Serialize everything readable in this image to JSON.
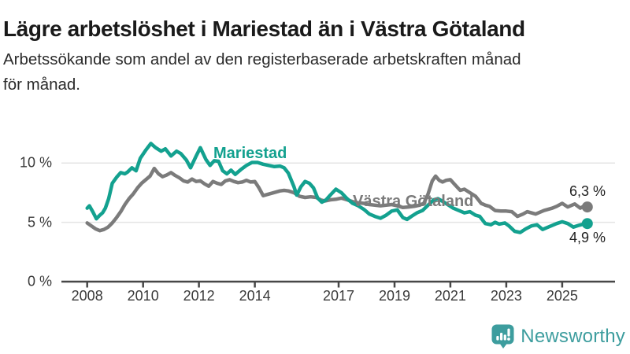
{
  "header": {
    "title": "Lägre arbetslöshet i Mariestad än i Västra Götaland",
    "subtitle_line1": "Arbetssökande som andel av den registerbaserade arbetskraften månad",
    "subtitle_line2": "för månad."
  },
  "chart_data": {
    "type": "line",
    "title": "",
    "xlabel": "",
    "ylabel": "",
    "x_axis": {
      "ticks": [
        2008,
        2010,
        2012,
        2014,
        2017,
        2019,
        2021,
        2023,
        2025
      ],
      "range": [
        2007.1,
        2026.9
      ]
    },
    "y_axis": {
      "ticks": [
        {
          "value": 0,
          "label": "0 %"
        },
        {
          "value": 5,
          "label": "5 %"
        },
        {
          "value": 10,
          "label": "10 %"
        }
      ],
      "gridlines": [
        5,
        10
      ],
      "range": [
        0,
        12.8
      ]
    },
    "grid": "horizontal-only",
    "legend_position": "inline-labels",
    "series": [
      {
        "name": "Mariestad",
        "color": "#13a18f",
        "end_label": "4,9 %",
        "end_value": 4.9,
        "points": [
          [
            2008.0,
            6.2
          ],
          [
            2008.08,
            6.4
          ],
          [
            2008.2,
            5.9
          ],
          [
            2008.33,
            5.3
          ],
          [
            2008.45,
            5.6
          ],
          [
            2008.55,
            5.8
          ],
          [
            2008.65,
            6.2
          ],
          [
            2008.77,
            7.0
          ],
          [
            2008.9,
            8.3
          ],
          [
            2009.05,
            8.8
          ],
          [
            2009.2,
            9.2
          ],
          [
            2009.35,
            9.1
          ],
          [
            2009.45,
            9.25
          ],
          [
            2009.6,
            9.6
          ],
          [
            2009.75,
            9.35
          ],
          [
            2009.9,
            10.4
          ],
          [
            2010.1,
            11.1
          ],
          [
            2010.28,
            11.65
          ],
          [
            2010.45,
            11.3
          ],
          [
            2010.65,
            11.0
          ],
          [
            2010.8,
            11.2
          ],
          [
            2011.0,
            10.6
          ],
          [
            2011.2,
            11.0
          ],
          [
            2011.35,
            10.8
          ],
          [
            2011.55,
            10.25
          ],
          [
            2011.7,
            9.6
          ],
          [
            2011.9,
            10.6
          ],
          [
            2012.05,
            11.3
          ],
          [
            2012.25,
            10.3
          ],
          [
            2012.4,
            9.8
          ],
          [
            2012.55,
            10.2
          ],
          [
            2012.7,
            10.15
          ],
          [
            2012.85,
            9.35
          ],
          [
            2013.0,
            9.1
          ],
          [
            2013.15,
            9.4
          ],
          [
            2013.3,
            9.05
          ],
          [
            2013.5,
            9.45
          ],
          [
            2013.7,
            9.8
          ],
          [
            2013.9,
            10.05
          ],
          [
            2014.1,
            10.05
          ],
          [
            2014.3,
            9.9
          ],
          [
            2014.5,
            9.8
          ],
          [
            2014.7,
            9.7
          ],
          [
            2014.9,
            9.75
          ],
          [
            2015.05,
            9.6
          ],
          [
            2015.2,
            9.15
          ],
          [
            2015.4,
            8.0
          ],
          [
            2015.5,
            7.3
          ],
          [
            2015.65,
            8.0
          ],
          [
            2015.8,
            8.45
          ],
          [
            2015.95,
            8.3
          ],
          [
            2016.1,
            7.9
          ],
          [
            2016.25,
            7.05
          ],
          [
            2016.4,
            6.7
          ],
          [
            2016.55,
            6.9
          ],
          [
            2016.7,
            7.3
          ],
          [
            2016.9,
            7.8
          ],
          [
            2017.1,
            7.5
          ],
          [
            2017.3,
            7.0
          ],
          [
            2017.5,
            6.6
          ],
          [
            2017.7,
            6.4
          ],
          [
            2017.9,
            6.1
          ],
          [
            2018.1,
            5.7
          ],
          [
            2018.3,
            5.5
          ],
          [
            2018.5,
            5.35
          ],
          [
            2018.7,
            5.6
          ],
          [
            2018.9,
            5.95
          ],
          [
            2019.1,
            6.05
          ],
          [
            2019.3,
            5.4
          ],
          [
            2019.45,
            5.25
          ],
          [
            2019.6,
            5.5
          ],
          [
            2019.8,
            5.8
          ],
          [
            2020.0,
            6.0
          ],
          [
            2020.2,
            6.45
          ],
          [
            2020.4,
            6.9
          ],
          [
            2020.55,
            7.0
          ],
          [
            2020.7,
            6.8
          ],
          [
            2020.9,
            6.5
          ],
          [
            2021.1,
            6.2
          ],
          [
            2021.3,
            6.0
          ],
          [
            2021.5,
            5.8
          ],
          [
            2021.7,
            5.9
          ],
          [
            2021.9,
            5.6
          ],
          [
            2022.05,
            5.5
          ],
          [
            2022.25,
            4.9
          ],
          [
            2022.45,
            4.8
          ],
          [
            2022.6,
            5.0
          ],
          [
            2022.75,
            4.85
          ],
          [
            2022.95,
            4.95
          ],
          [
            2023.1,
            4.7
          ],
          [
            2023.3,
            4.25
          ],
          [
            2023.5,
            4.15
          ],
          [
            2023.7,
            4.45
          ],
          [
            2023.9,
            4.7
          ],
          [
            2024.1,
            4.8
          ],
          [
            2024.3,
            4.4
          ],
          [
            2024.45,
            4.55
          ],
          [
            2024.6,
            4.7
          ],
          [
            2024.8,
            4.9
          ],
          [
            2025.0,
            5.05
          ],
          [
            2025.2,
            4.9
          ],
          [
            2025.4,
            4.6
          ],
          [
            2025.6,
            4.75
          ],
          [
            2025.75,
            4.85
          ],
          [
            2025.9,
            4.9
          ]
        ]
      },
      {
        "name": "Västra Götaland",
        "color": "#7b7b7b",
        "end_label": "6,3 %",
        "end_value": 6.3,
        "points": [
          [
            2008.0,
            4.95
          ],
          [
            2008.15,
            4.7
          ],
          [
            2008.3,
            4.45
          ],
          [
            2008.45,
            4.3
          ],
          [
            2008.6,
            4.4
          ],
          [
            2008.75,
            4.6
          ],
          [
            2008.9,
            4.95
          ],
          [
            2009.05,
            5.4
          ],
          [
            2009.2,
            5.9
          ],
          [
            2009.35,
            6.5
          ],
          [
            2009.5,
            7.0
          ],
          [
            2009.65,
            7.4
          ],
          [
            2009.8,
            7.9
          ],
          [
            2009.95,
            8.3
          ],
          [
            2010.1,
            8.6
          ],
          [
            2010.25,
            8.9
          ],
          [
            2010.4,
            9.55
          ],
          [
            2010.55,
            9.1
          ],
          [
            2010.7,
            8.85
          ],
          [
            2010.85,
            9.0
          ],
          [
            2011.0,
            9.2
          ],
          [
            2011.15,
            8.95
          ],
          [
            2011.3,
            8.75
          ],
          [
            2011.45,
            8.5
          ],
          [
            2011.6,
            8.4
          ],
          [
            2011.75,
            8.65
          ],
          [
            2011.9,
            8.45
          ],
          [
            2012.05,
            8.5
          ],
          [
            2012.2,
            8.25
          ],
          [
            2012.35,
            8.05
          ],
          [
            2012.5,
            8.45
          ],
          [
            2012.65,
            8.3
          ],
          [
            2012.8,
            8.2
          ],
          [
            2012.95,
            8.5
          ],
          [
            2013.1,
            8.6
          ],
          [
            2013.25,
            8.45
          ],
          [
            2013.4,
            8.35
          ],
          [
            2013.55,
            8.4
          ],
          [
            2013.7,
            8.55
          ],
          [
            2013.85,
            8.4
          ],
          [
            2014.0,
            8.45
          ],
          [
            2014.15,
            7.9
          ],
          [
            2014.3,
            7.25
          ],
          [
            2014.45,
            7.35
          ],
          [
            2014.6,
            7.45
          ],
          [
            2014.75,
            7.55
          ],
          [
            2014.9,
            7.65
          ],
          [
            2015.05,
            7.7
          ],
          [
            2015.2,
            7.65
          ],
          [
            2015.4,
            7.5
          ],
          [
            2015.6,
            7.2
          ],
          [
            2015.8,
            7.1
          ],
          [
            2016.0,
            7.15
          ],
          [
            2016.2,
            7.1
          ],
          [
            2016.35,
            6.9
          ],
          [
            2016.5,
            6.8
          ],
          [
            2016.7,
            6.9
          ],
          [
            2016.9,
            6.95
          ],
          [
            2017.1,
            7.05
          ],
          [
            2017.3,
            6.9
          ],
          [
            2017.5,
            6.75
          ],
          [
            2017.7,
            6.65
          ],
          [
            2017.9,
            6.6
          ],
          [
            2018.1,
            6.5
          ],
          [
            2018.3,
            6.45
          ],
          [
            2018.5,
            6.4
          ],
          [
            2018.7,
            6.45
          ],
          [
            2018.9,
            6.5
          ],
          [
            2019.1,
            6.4
          ],
          [
            2019.3,
            6.25
          ],
          [
            2019.5,
            6.3
          ],
          [
            2019.7,
            6.35
          ],
          [
            2019.9,
            6.45
          ],
          [
            2020.05,
            6.6
          ],
          [
            2020.2,
            7.4
          ],
          [
            2020.35,
            8.5
          ],
          [
            2020.47,
            8.9
          ],
          [
            2020.6,
            8.55
          ],
          [
            2020.72,
            8.4
          ],
          [
            2020.85,
            8.55
          ],
          [
            2021.0,
            8.6
          ],
          [
            2021.15,
            8.2
          ],
          [
            2021.35,
            7.7
          ],
          [
            2021.5,
            7.8
          ],
          [
            2021.7,
            7.5
          ],
          [
            2021.9,
            7.2
          ],
          [
            2022.1,
            6.6
          ],
          [
            2022.25,
            6.45
          ],
          [
            2022.4,
            6.35
          ],
          [
            2022.6,
            6.0
          ],
          [
            2022.8,
            5.95
          ],
          [
            2023.0,
            5.95
          ],
          [
            2023.2,
            5.9
          ],
          [
            2023.4,
            5.5
          ],
          [
            2023.6,
            5.7
          ],
          [
            2023.75,
            5.9
          ],
          [
            2023.9,
            5.8
          ],
          [
            2024.05,
            5.7
          ],
          [
            2024.2,
            5.85
          ],
          [
            2024.35,
            6.0
          ],
          [
            2024.5,
            6.1
          ],
          [
            2024.65,
            6.2
          ],
          [
            2024.8,
            6.35
          ],
          [
            2025.0,
            6.6
          ],
          [
            2025.2,
            6.3
          ],
          [
            2025.45,
            6.55
          ],
          [
            2025.65,
            6.2
          ],
          [
            2025.8,
            6.4
          ],
          [
            2025.9,
            6.3
          ]
        ]
      }
    ],
    "colors": {
      "gridline": "#e4e4e4",
      "axis": "#474747",
      "axis_text": "#3a3a3a",
      "value_label_text": "#222222"
    }
  },
  "branding": {
    "logo_text": "Newsworthy",
    "logo_color": "#3d9d9e"
  }
}
